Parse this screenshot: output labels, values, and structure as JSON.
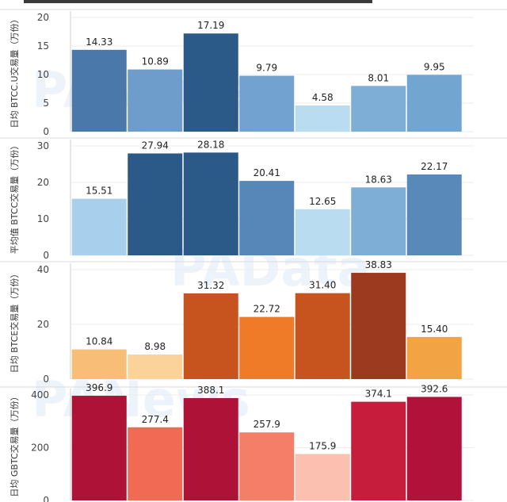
{
  "chart_data": [
    {
      "type": "bar",
      "ylabel": "日均 BTCC.U交易量（万份）",
      "ylim": [
        0,
        20
      ],
      "yticks": [
        0,
        5,
        10,
        15,
        20
      ],
      "values": [
        14.33,
        10.89,
        17.19,
        9.79,
        4.58,
        8.01,
        9.95
      ],
      "value_labels": [
        "14.33",
        "10.89",
        "17.19",
        "9.79",
        "4.58",
        "8.01",
        "9.95"
      ],
      "colors": [
        "#4a78ab",
        "#6e9dcb",
        "#2b5988",
        "#72a2d0",
        "#b9dcf0",
        "#7eaed6",
        "#72a5d0"
      ]
    },
    {
      "type": "bar",
      "ylabel": "平均值 BTCC交易量（万份）",
      "ylim": [
        0,
        30
      ],
      "yticks": [
        0,
        10,
        20,
        30
      ],
      "values": [
        15.51,
        27.94,
        28.18,
        20.41,
        12.65,
        18.63,
        22.17
      ],
      "value_labels": [
        "15.51",
        "27.94",
        "28.18",
        "20.41",
        "12.65",
        "18.63",
        "22.17"
      ],
      "colors": [
        "#a8cfeb",
        "#2b5988",
        "#2b5988",
        "#5787b8",
        "#b9dcf0",
        "#7eaed6",
        "#5889b8"
      ]
    },
    {
      "type": "bar",
      "ylabel": "日均 BTCE交易量（万份）",
      "ylim": [
        0,
        40
      ],
      "yticks": [
        0,
        20,
        40
      ],
      "values": [
        10.84,
        8.98,
        31.32,
        22.72,
        31.4,
        38.83,
        15.4
      ],
      "value_labels": [
        "10.84",
        "8.98",
        "31.32",
        "22.72",
        "31.40",
        "38.83",
        "15.40"
      ],
      "colors": [
        "#f8be78",
        "#fbd39a",
        "#c7541f",
        "#ef7a27",
        "#c7541f",
        "#9c3a1f",
        "#f2a444"
      ]
    },
    {
      "type": "bar",
      "ylabel": "日均 GBTC交易量（万份）",
      "ylim": [
        0,
        400
      ],
      "yticks": [
        0,
        200,
        400
      ],
      "values": [
        396.9,
        277.4,
        388.1,
        257.9,
        175.9,
        374.1,
        392.6
      ],
      "value_labels": [
        "396.9",
        "277.4",
        "388.1",
        "257.9",
        "175.9",
        "374.1",
        "392.6"
      ],
      "colors": [
        "#ae1237",
        "#f06a54",
        "#ae1237",
        "#f47e68",
        "#fbc0b0",
        "#c71d3c",
        "#b0123a"
      ]
    }
  ],
  "watermarks": [
    "PANews",
    "PAData",
    "PANews"
  ]
}
